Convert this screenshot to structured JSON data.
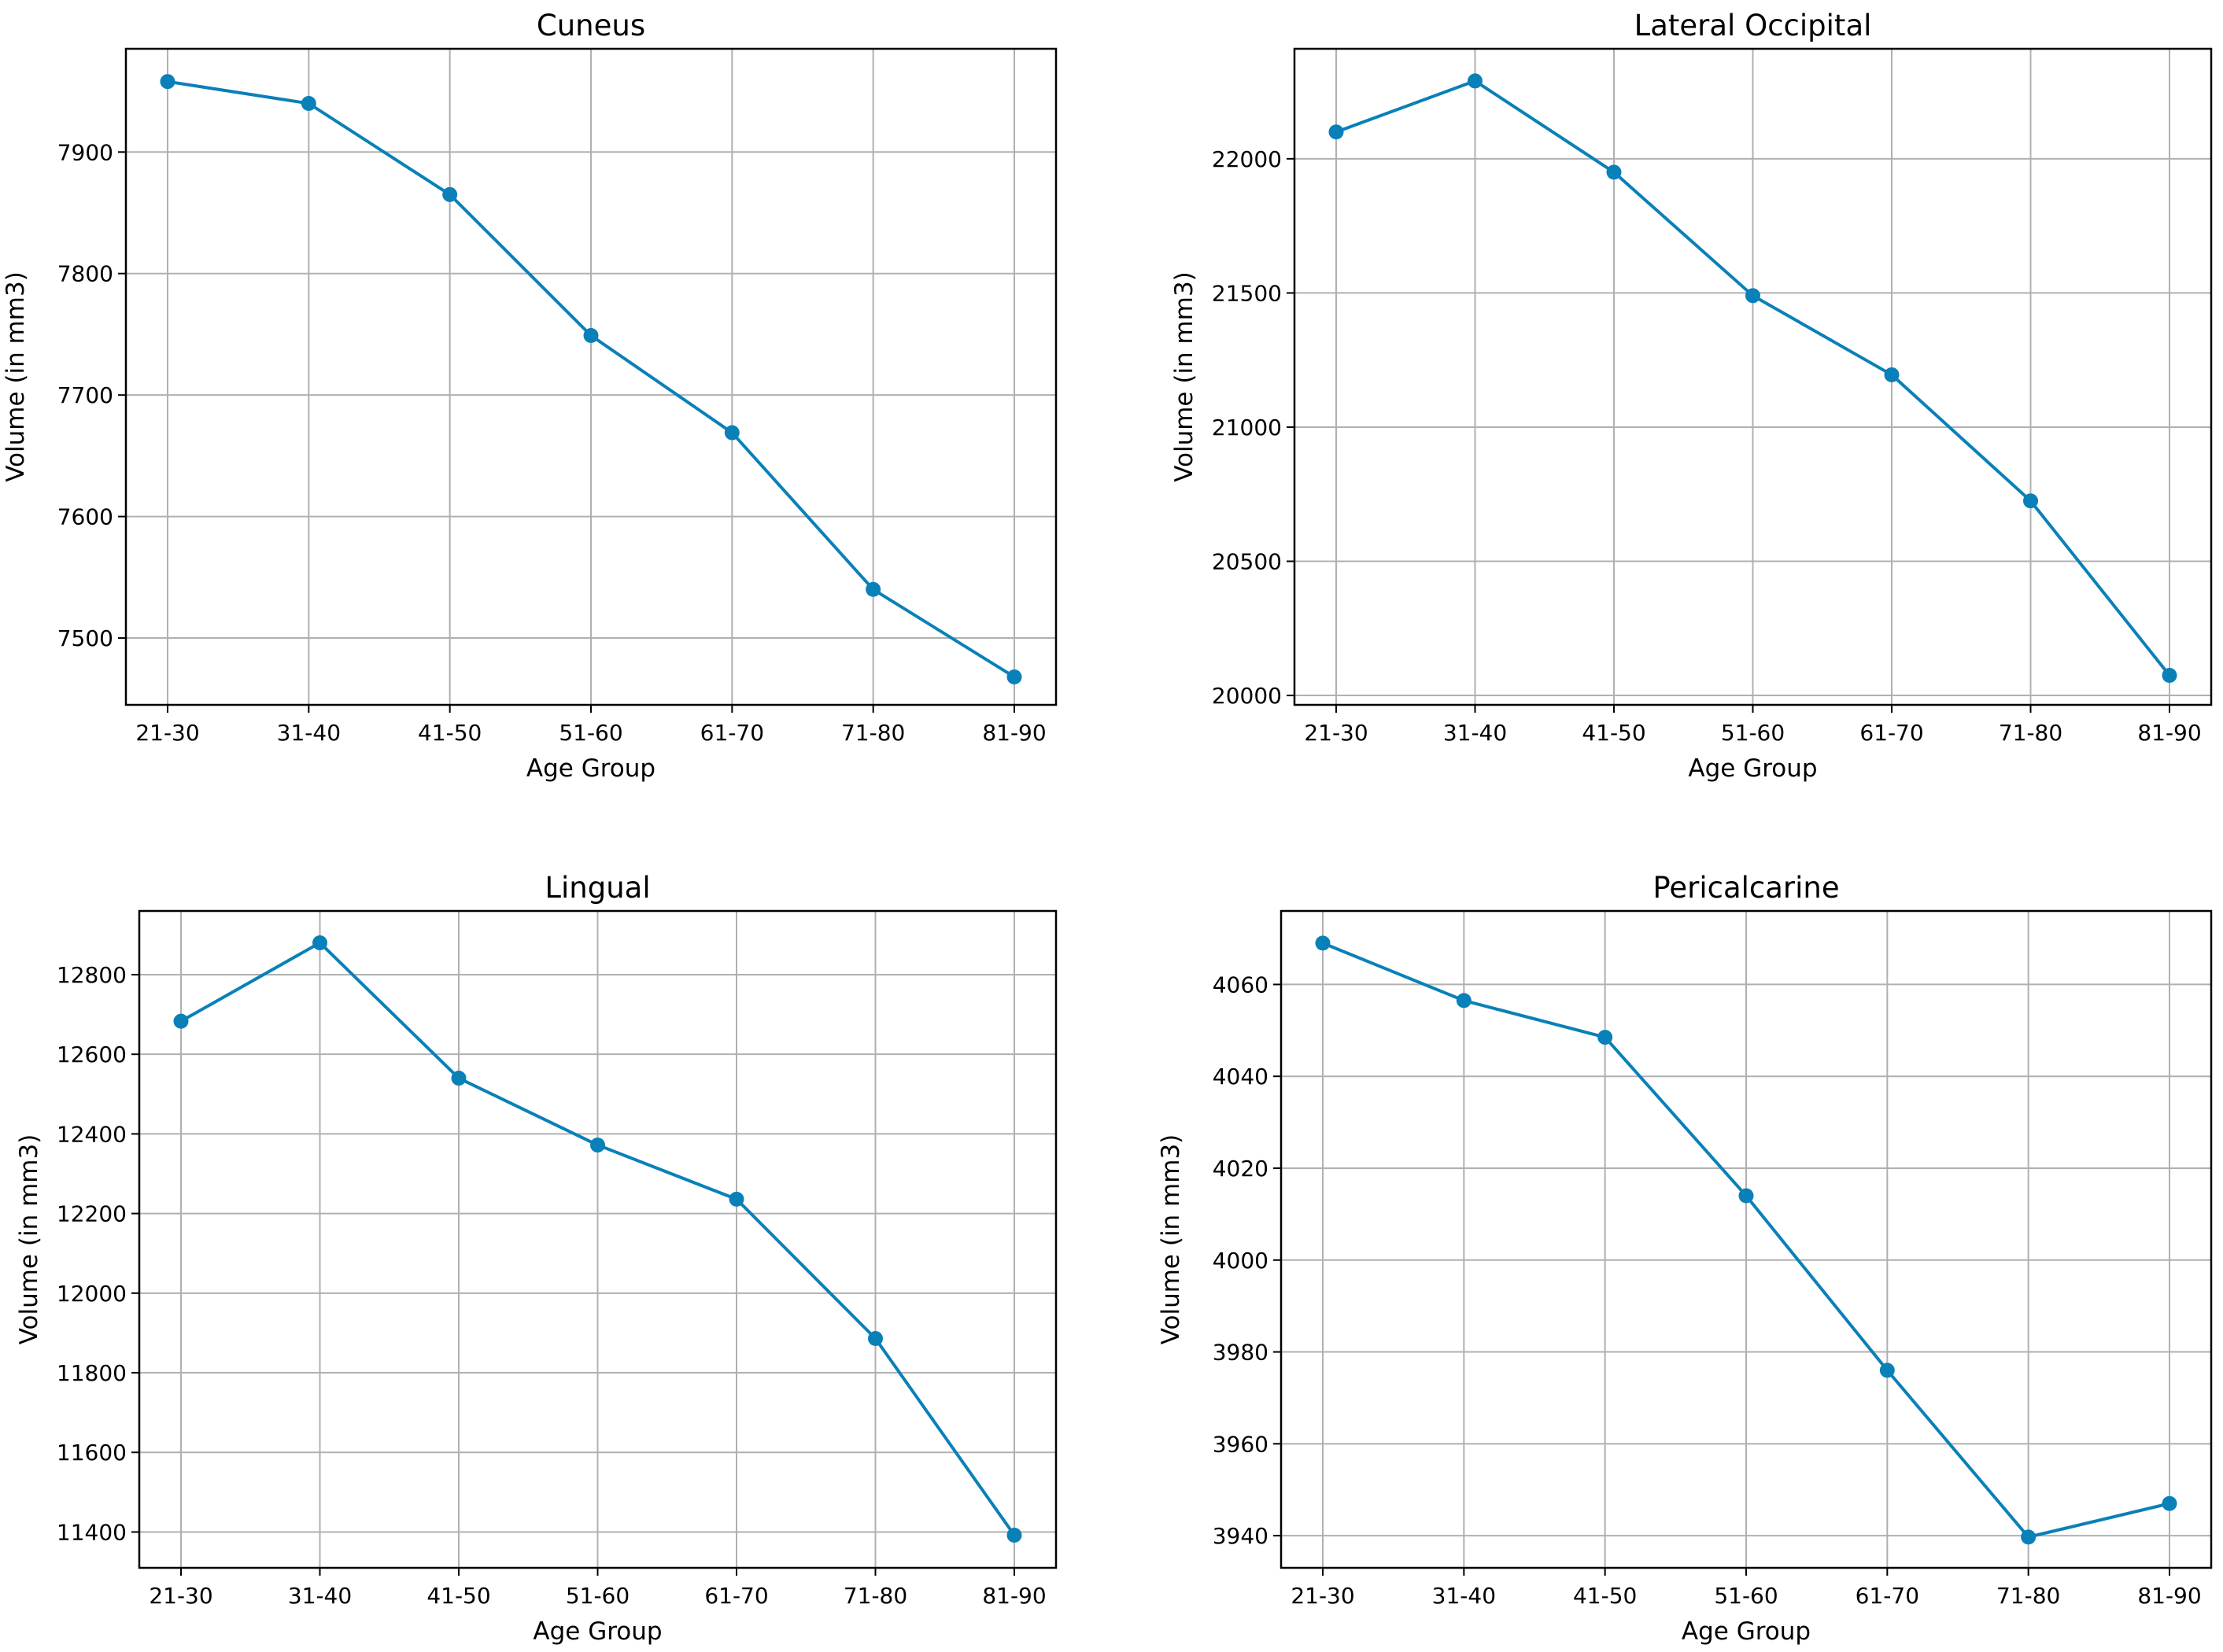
{
  "style": {
    "line_color": "#0a80b8",
    "grid_color": "#b0b0b0"
  },
  "chart_data": [
    {
      "type": "line",
      "title": "Cuneus",
      "xlabel": "Age Group",
      "ylabel": "Volume (in mm3)",
      "categories": [
        "21-30",
        "31-40",
        "41-50",
        "51-60",
        "61-70",
        "71-80",
        "81-90"
      ],
      "yticks": [
        7500,
        7600,
        7700,
        7800,
        7900
      ],
      "ylim": [
        7445,
        7985
      ],
      "grid": true,
      "series": [
        {
          "values": [
            7958,
            7940,
            7865,
            7749,
            7669,
            7540,
            7468
          ]
        }
      ]
    },
    {
      "type": "line",
      "title": "Lateral Occipital",
      "xlabel": "Age Group",
      "ylabel": "Volume (in mm3)",
      "categories": [
        "21-30",
        "31-40",
        "41-50",
        "51-60",
        "61-70",
        "71-80",
        "81-90"
      ],
      "yticks": [
        20000,
        20500,
        21000,
        21500,
        22000
      ],
      "ylim": [
        19965,
        22410
      ],
      "grid": true,
      "series": [
        {
          "values": [
            22100,
            22290,
            21950,
            21490,
            21195,
            20725,
            20075
          ]
        }
      ]
    },
    {
      "type": "line",
      "title": "Lingual",
      "xlabel": "Age Group",
      "ylabel": "Volume (in mm3)",
      "categories": [
        "21-30",
        "31-40",
        "41-50",
        "51-60",
        "61-70",
        "71-80",
        "81-90"
      ],
      "yticks": [
        11400,
        11600,
        11800,
        12000,
        12200,
        12400,
        12600,
        12800
      ],
      "ylim": [
        11310,
        12960
      ],
      "grid": true,
      "series": [
        {
          "values": [
            12683,
            12880,
            12540,
            12372,
            12236,
            11886,
            11392
          ]
        }
      ]
    },
    {
      "type": "line",
      "title": "Pericalcarine",
      "xlabel": "Age Group",
      "ylabel": "Volume (in mm3)",
      "categories": [
        "21-30",
        "31-40",
        "41-50",
        "51-60",
        "61-70",
        "71-80",
        "81-90"
      ],
      "yticks": [
        3940,
        3960,
        3980,
        4000,
        4020,
        4040,
        4060
      ],
      "ylim": [
        3933,
        4076
      ],
      "grid": true,
      "series": [
        {
          "values": [
            4069,
            4056.5,
            4048.5,
            4014,
            3976,
            3939.7,
            3947
          ]
        }
      ]
    }
  ]
}
